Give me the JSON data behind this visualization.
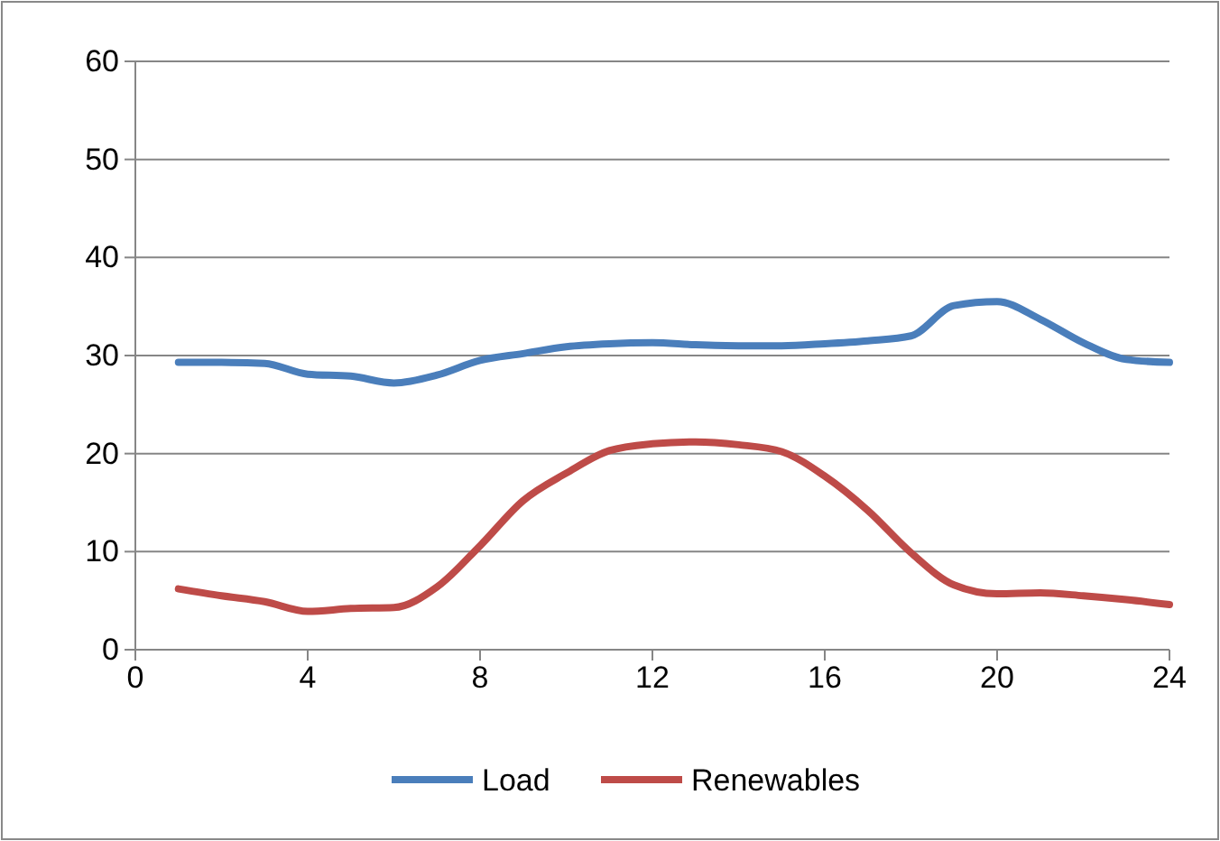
{
  "chart_data": {
    "type": "line",
    "x": [
      1,
      2,
      3,
      4,
      5,
      6,
      7,
      8,
      9,
      10,
      11,
      12,
      13,
      14,
      15,
      16,
      17,
      18,
      19,
      20,
      21,
      22,
      23,
      24
    ],
    "series": [
      {
        "name": "Load",
        "color": "#4a7ebb",
        "values": [
          29.3,
          29.3,
          29.2,
          28.1,
          27.9,
          27.2,
          28,
          29.5,
          30.2,
          30.9,
          31.2,
          31.3,
          31.1,
          31,
          31,
          31.2,
          31.5,
          32,
          35.1,
          35.5,
          33.7,
          31.3,
          29.6,
          29.3
        ]
      },
      {
        "name": "Renewables",
        "color": "#be4b48",
        "values": [
          6.2,
          5.5,
          4.9,
          3.9,
          4.2,
          4.3,
          6.4,
          10.6,
          15.2,
          18,
          20.3,
          21,
          21.2,
          20.9,
          20.2,
          17.7,
          14.2,
          9.9,
          6.6,
          5.7,
          5.8,
          5.5,
          5.1,
          4.6
        ]
      }
    ],
    "xlim": [
      0,
      24
    ],
    "xticks": [
      0,
      4,
      8,
      12,
      16,
      20,
      24
    ],
    "ylim": [
      0,
      60
    ],
    "yticks": [
      0,
      10,
      20,
      30,
      40,
      50,
      60
    ],
    "grid": "y",
    "legend": "bottom",
    "marker": "none",
    "line_style": "solid"
  }
}
